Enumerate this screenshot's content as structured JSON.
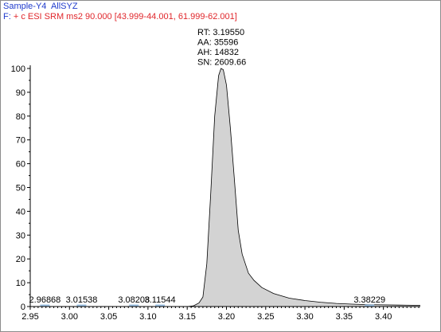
{
  "header": {
    "sample": "Sample-Y4",
    "compound": "AllSYZ",
    "filter_prefix": "F:",
    "filter": "+ c ESI SRM ms2 90.000 [43.999-44.001, 61.999-62.001]"
  },
  "chart_data": {
    "type": "area",
    "title": "",
    "xlabel": "",
    "ylabel": "",
    "xlim": [
      2.95,
      3.447
    ],
    "ylim": [
      0,
      100
    ],
    "x_ticks": [
      "2.95",
      "3.00",
      "3.05",
      "3.10",
      "3.15",
      "3.20",
      "3.25",
      "3.30",
      "3.35",
      "3.40"
    ],
    "y_ticks": [
      "0",
      "10",
      "20",
      "30",
      "40",
      "50",
      "60",
      "70",
      "80",
      "90",
      "100"
    ],
    "grid": false,
    "fill_color": "#d3d3d3",
    "line_color": "#000000",
    "series": [
      {
        "x": [
          2.95,
          3.15,
          3.158,
          3.165,
          3.17,
          3.175,
          3.18,
          3.185,
          3.19,
          3.193,
          3.196,
          3.2,
          3.205,
          3.21,
          3.215,
          3.22,
          3.228,
          3.235,
          3.245,
          3.26,
          3.28,
          3.3,
          3.32,
          3.34,
          3.36,
          3.38,
          3.4,
          3.42,
          3.447
        ],
        "y": [
          0,
          0,
          0.3,
          1.5,
          4,
          18,
          48,
          80,
          97,
          100,
          99.5,
          93,
          75,
          54,
          32,
          22,
          14,
          11,
          8,
          5.5,
          3.5,
          2.5,
          1.8,
          1.3,
          1.0,
          0.8,
          0.7,
          0.6,
          0.5
        ]
      }
    ],
    "peak_annotation": {
      "x": 3.1955,
      "lines": [
        "RT: 3.19550",
        "AA: 35596",
        "AH: 14832",
        "SN: 2609.66"
      ]
    },
    "minor_peaks": [
      {
        "x": 2.96868,
        "label": "2.96868"
      },
      {
        "x": 3.01538,
        "label": "3.01538"
      },
      {
        "x": 3.08208,
        "label": "3.08208"
      },
      {
        "x": 3.11544,
        "label": "3.11544"
      },
      {
        "x": 3.38229,
        "label": "3.38229"
      }
    ]
  }
}
